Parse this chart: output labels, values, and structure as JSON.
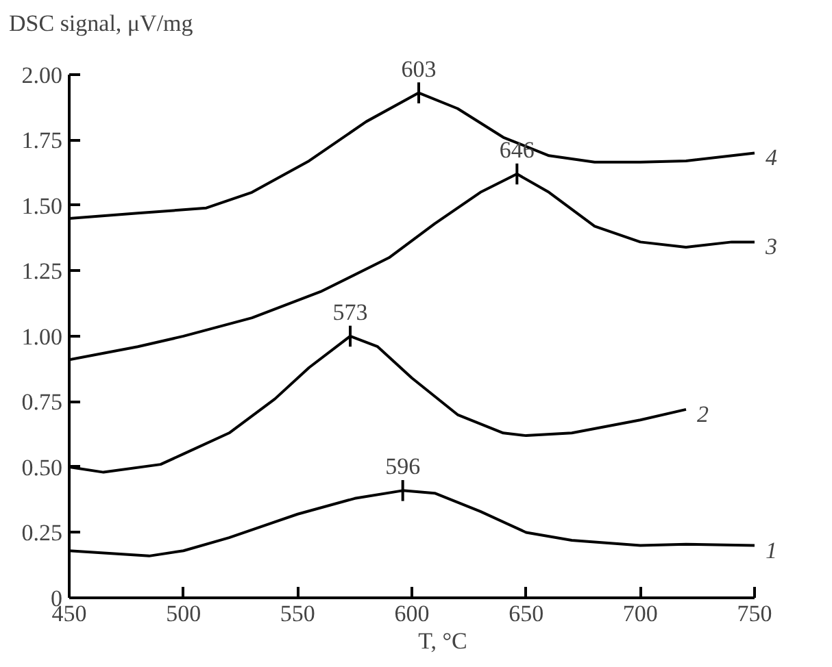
{
  "chart_data": {
    "type": "line",
    "xlabel": "T, °C",
    "ylabel": "DSC signal, μV/mg",
    "xlim": [
      450,
      750
    ],
    "xticks": [
      450,
      500,
      550,
      600,
      650,
      700,
      750
    ],
    "ylim": [
      0,
      2.0
    ],
    "yticks": [
      {
        "value": 0,
        "label": "0"
      },
      {
        "value": 0.25,
        "label": "0.25"
      },
      {
        "value": 0.5,
        "label": "0.50"
      },
      {
        "value": 0.75,
        "label": "0.75"
      },
      {
        "value": 1.0,
        "label": "1.00"
      },
      {
        "value": 1.25,
        "label": "1.25"
      },
      {
        "value": 1.5,
        "label": "1.50"
      },
      {
        "value": 1.75,
        "label": "1.75"
      },
      {
        "value": 2.0,
        "label": "2.00"
      }
    ],
    "grid": false,
    "marker": "none",
    "line_style": "solid",
    "series": [
      {
        "name": "1",
        "color": "#000000",
        "x": [
          450,
          485,
          500,
          520,
          550,
          575,
          596,
          610,
          630,
          650,
          670,
          700,
          720,
          750
        ],
        "values": [
          0.18,
          0.16,
          0.18,
          0.23,
          0.32,
          0.38,
          0.41,
          0.4,
          0.33,
          0.25,
          0.22,
          0.2,
          0.205,
          0.2
        ]
      },
      {
        "name": "2",
        "color": "#000000",
        "x": [
          450,
          465,
          490,
          500,
          520,
          540,
          555,
          573,
          585,
          600,
          620,
          640,
          650,
          670,
          700,
          720
        ],
        "values": [
          0.5,
          0.48,
          0.51,
          0.55,
          0.63,
          0.76,
          0.88,
          1.0,
          0.96,
          0.84,
          0.7,
          0.63,
          0.62,
          0.63,
          0.68,
          0.72
        ]
      },
      {
        "name": "3",
        "color": "#000000",
        "x": [
          450,
          480,
          500,
          530,
          560,
          590,
          610,
          630,
          646,
          660,
          680,
          700,
          720,
          740,
          750
        ],
        "values": [
          0.91,
          0.96,
          1.0,
          1.07,
          1.17,
          1.3,
          1.43,
          1.55,
          1.62,
          1.55,
          1.42,
          1.36,
          1.34,
          1.36,
          1.36
        ]
      },
      {
        "name": "4",
        "color": "#000000",
        "x": [
          450,
          480,
          510,
          530,
          555,
          580,
          603,
          620,
          640,
          660,
          680,
          700,
          720,
          750
        ],
        "values": [
          1.45,
          1.47,
          1.49,
          1.55,
          1.67,
          1.82,
          1.93,
          1.87,
          1.76,
          1.69,
          1.665,
          1.665,
          1.67,
          1.7
        ]
      }
    ],
    "annotations": [
      {
        "text": "596",
        "x": 596,
        "y": 0.41
      },
      {
        "text": "573",
        "x": 573,
        "y": 1.0
      },
      {
        "text": "646",
        "x": 646,
        "y": 1.62
      },
      {
        "text": "603",
        "x": 603,
        "y": 1.93
      }
    ]
  }
}
